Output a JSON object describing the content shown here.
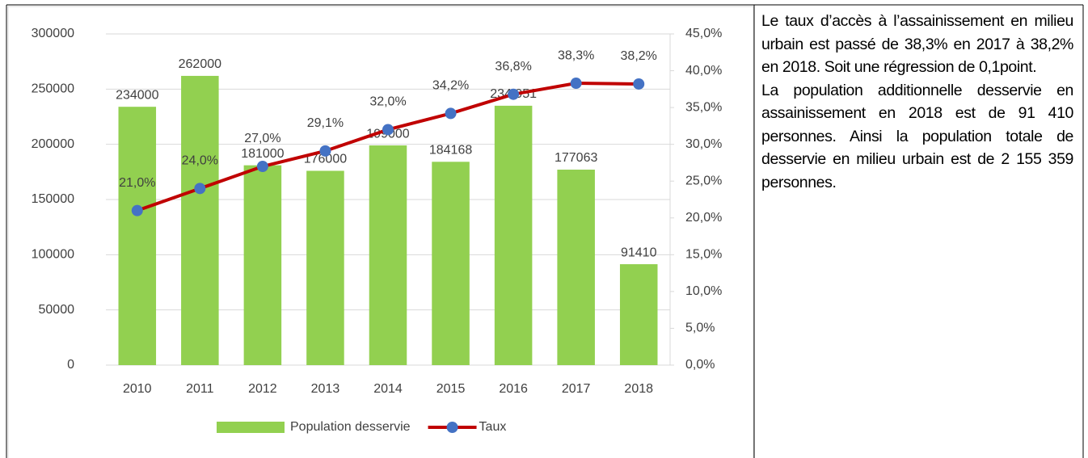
{
  "chart_data": {
    "type": "bar",
    "categories": [
      "2010",
      "2011",
      "2012",
      "2013",
      "2014",
      "2015",
      "2016",
      "2017",
      "2018"
    ],
    "series": [
      {
        "name": "Population desservie",
        "type": "bar",
        "color": "#92d050",
        "values": [
          234000,
          262000,
          181000,
          176000,
          199000,
          184168,
          234951,
          177063,
          91410
        ],
        "value_labels": [
          "234000",
          "262000",
          "181000",
          "176000",
          "199000",
          "184168",
          "234 951",
          "177063",
          "91410"
        ]
      },
      {
        "name": "Taux",
        "type": "line",
        "axis": "y2",
        "color": "#c00000",
        "marker_color": "#4472c4",
        "values": [
          21.0,
          24.0,
          27.0,
          29.1,
          32.0,
          34.2,
          36.8,
          38.3,
          38.2
        ],
        "value_labels": [
          "21,0%",
          "24,0%",
          "27,0%",
          "29,1%",
          "32,0%",
          "34,2%",
          "36,8%",
          "38,3%",
          "38,2%"
        ]
      }
    ],
    "ylim": [
      0,
      300000
    ],
    "yticks": [
      0,
      50000,
      100000,
      150000,
      200000,
      250000,
      300000
    ],
    "y2lim": [
      0,
      45
    ],
    "y2ticks": [
      {
        "value": 0,
        "label": "0,0%"
      },
      {
        "value": 5,
        "label": "5,0%"
      },
      {
        "value": 10,
        "label": "10,0%"
      },
      {
        "value": 15,
        "label": "15,0%"
      },
      {
        "value": 20,
        "label": "20,0%"
      },
      {
        "value": 25,
        "label": "25,0%"
      },
      {
        "value": 30,
        "label": "30,0%"
      },
      {
        "value": 35,
        "label": "35,0%"
      },
      {
        "value": 40,
        "label": "40,0%"
      },
      {
        "value": 45,
        "label": "45,0%"
      }
    ],
    "grid": true,
    "legend": "bottom"
  },
  "text": {
    "paragraphs": [
      "Le taux d’accès à l’assainissement en milieu urbain est passé de 38,3% en 2017 à 38,2% en 2018. Soit une régression de 0,1point.",
      "La population additionnelle desservie en assainissement en 2018 est de 91 410 personnes. Ainsi la population totale de desservie en milieu urbain est de 2 155 359 personnes."
    ]
  }
}
